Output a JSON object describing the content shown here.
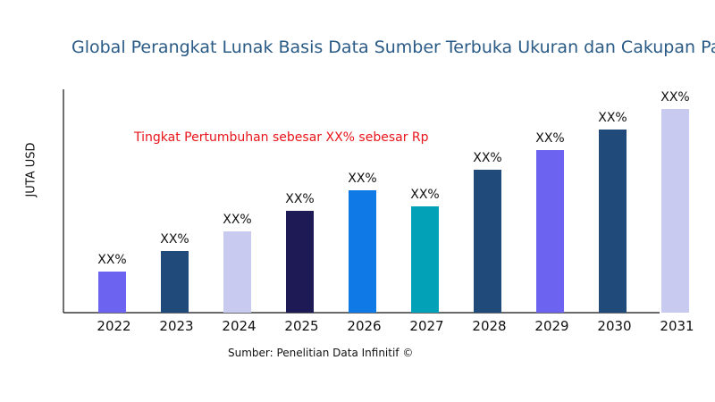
{
  "chart_data": {
    "type": "bar",
    "title": "Global Perangkat Lunak Basis Data Sumber Terbuka Ukuran dan Cakupan Pas",
    "ylabel": "JUTA USD",
    "xlabel": "",
    "categories": [
      "2022",
      "2023",
      "2024",
      "2025",
      "2026",
      "2027",
      "2028",
      "2029",
      "2030",
      "2031"
    ],
    "values": [
      46,
      69,
      91,
      114,
      137,
      119,
      160,
      182,
      205,
      228
    ],
    "ylim": [
      0,
      250
    ],
    "data_labels": [
      "XX%",
      "XX%",
      "XX%",
      "XX%",
      "XX%",
      "XX%",
      "XX%",
      "XX%",
      "XX%",
      "XX%"
    ],
    "bar_colors": [
      "#6c63f0",
      "#1f4a7a",
      "#c8caf0",
      "#1e1a56",
      "#0f7ae5",
      "#03a1b8",
      "#1f4a7a",
      "#6c63f0",
      "#1f4a7a",
      "#c8caf0"
    ],
    "annotation": "Tingkat Pertumbuhan sebesar XX% sebesar Rp",
    "annotation_color": "#e8151b",
    "source": "Sumber: Penelitian Data Infinitif ©",
    "grid": false,
    "y_ticks_shown": false
  }
}
